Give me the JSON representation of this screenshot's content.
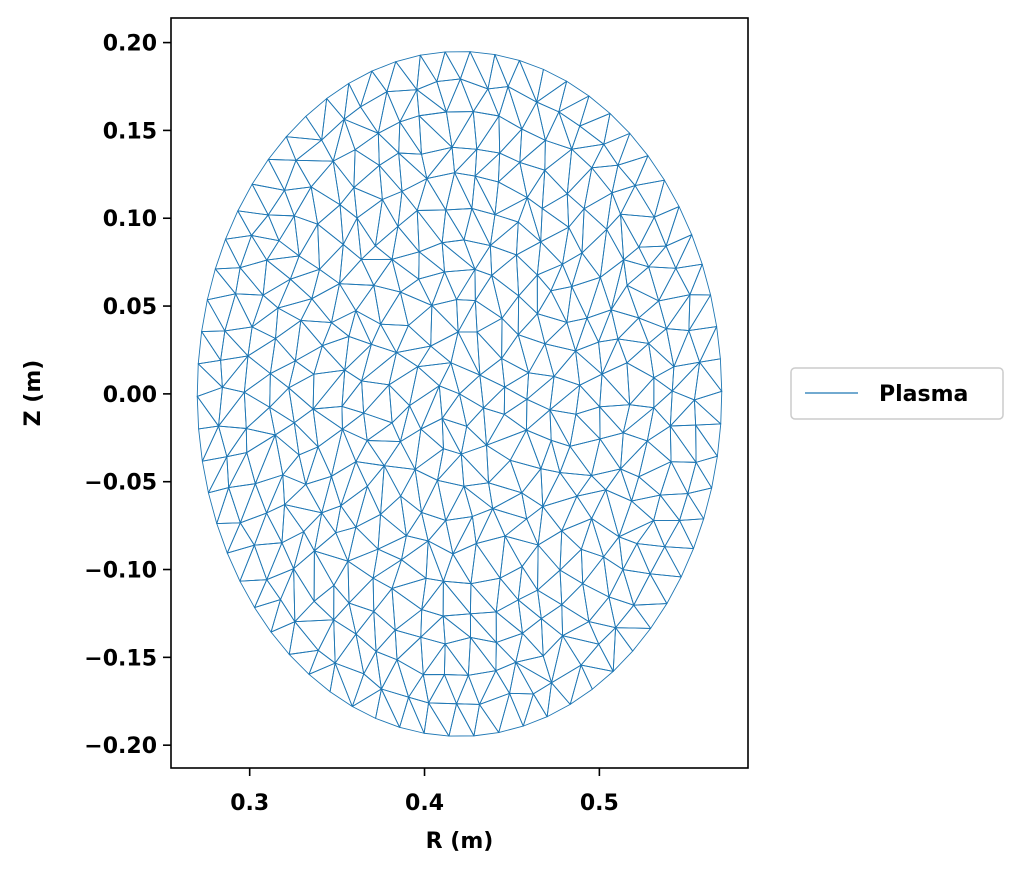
{
  "chart_data": {
    "type": "triangular-mesh",
    "title": "",
    "xlabel": "R (m)",
    "ylabel": "Z (m)",
    "xlim": [
      0.255,
      0.585
    ],
    "ylim": [
      -0.213,
      0.214
    ],
    "xticks": [
      0.3,
      0.4,
      0.5
    ],
    "xtick_labels": [
      "0.3",
      "0.4",
      "0.5"
    ],
    "yticks": [
      -0.2,
      -0.15,
      -0.1,
      -0.05,
      0.0,
      0.05,
      0.1,
      0.15,
      0.2
    ],
    "ytick_labels": [
      "−0.20",
      "−0.15",
      "−0.10",
      "−0.05",
      "0.00",
      "0.05",
      "0.10",
      "0.15",
      "0.20"
    ],
    "grid": false,
    "legend": {
      "placement": "right-outside",
      "entries": [
        {
          "label": "Plasma",
          "color": "#1f77b4"
        }
      ]
    },
    "series": [
      {
        "name": "Plasma",
        "color": "#1f77b4",
        "shape": "ellipse",
        "center": [
          0.42,
          0.0
        ],
        "semi_axis_r": 0.15,
        "semi_axis_z": 0.195,
        "rings": 11
      }
    ]
  }
}
